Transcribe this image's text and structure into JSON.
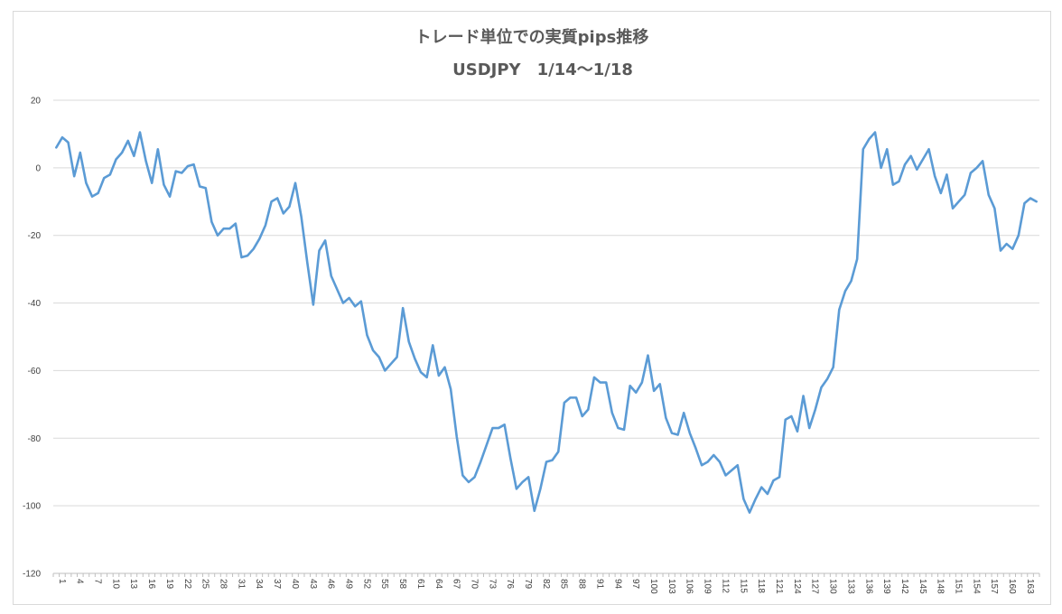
{
  "chart_data": {
    "type": "line",
    "title": "トレード単位での実質pips推移",
    "subtitle": "USDJPY　1/14～1/18",
    "xlabel": "",
    "ylabel": "",
    "ylim": [
      -120,
      20
    ],
    "y_ticks": [
      20,
      0,
      -20,
      -40,
      -60,
      -80,
      -100,
      -120
    ],
    "x_tick_labels": [
      "1",
      "4",
      "7",
      "10",
      "13",
      "16",
      "19",
      "22",
      "25",
      "28",
      "31",
      "34",
      "37",
      "40",
      "43",
      "46",
      "49",
      "52",
      "55",
      "58",
      "61",
      "64",
      "67",
      "70",
      "73",
      "76",
      "79",
      "82",
      "85",
      "88",
      "91",
      "94",
      "97",
      "100",
      "103",
      "106",
      "109",
      "112",
      "115",
      "118",
      "121",
      "124",
      "127",
      "130",
      "133",
      "136",
      "139",
      "142",
      "145",
      "148",
      "151",
      "154",
      "157",
      "160",
      "163"
    ],
    "x_tick_positions": [
      1,
      4,
      7,
      10,
      13,
      16,
      19,
      22,
      25,
      28,
      31,
      34,
      37,
      40,
      43,
      46,
      49,
      52,
      55,
      58,
      61,
      64,
      67,
      70,
      73,
      76,
      79,
      82,
      85,
      88,
      91,
      94,
      97,
      100,
      103,
      106,
      109,
      112,
      115,
      118,
      121,
      124,
      127,
      130,
      133,
      136,
      139,
      142,
      145,
      148,
      151,
      154,
      157,
      160,
      163
    ],
    "x_count": 165,
    "grid": "horizontal",
    "legend": "none",
    "series": [
      {
        "color": "#5b9bd5",
        "values": [
          6,
          9,
          7.5,
          -2.5,
          4.5,
          -4.5,
          -8.5,
          -7.5,
          -3,
          -2,
          2.5,
          4.5,
          8,
          3.5,
          10.5,
          2,
          -4.5,
          5.5,
          -5,
          -8.5,
          -1,
          -1.5,
          0.5,
          1,
          -5.5,
          -6,
          -16,
          -20,
          -18,
          -18,
          -16.5,
          -26.5,
          -26,
          -24,
          -21,
          -17,
          -10,
          -9,
          -13.5,
          -11.5,
          -4.5,
          -14.5,
          -28,
          -40.5,
          -24.5,
          -21.5,
          -32,
          -36,
          -40,
          -38.5,
          -41,
          -39.5,
          -49.5,
          -54,
          -56,
          -60,
          -58,
          -56,
          -41.5,
          -51.5,
          -56.5,
          -60.5,
          -62,
          -52.5,
          -61.5,
          -59,
          -65.5,
          -79.5,
          -91,
          -93,
          -91.5,
          -87,
          -82,
          -77,
          -77,
          -76,
          -86,
          -95,
          -93,
          -91.5,
          -101.5,
          -95,
          -87,
          -86.5,
          -84,
          -69.5,
          -68,
          -68,
          -73.5,
          -71.5,
          -62,
          -63.5,
          -63.5,
          -72.5,
          -77,
          -77.5,
          -64.5,
          -66.5,
          -63.5,
          -55.5,
          -66,
          -64,
          -74,
          -78.5,
          -79,
          -72.5,
          -78.5,
          -83,
          -88,
          -87,
          -85,
          -87,
          -91,
          -89.5,
          -88,
          -98,
          -102,
          -98,
          -94.5,
          -96.5,
          -92.5,
          -91.5,
          -74.5,
          -73.5,
          -78,
          -67.5,
          -77,
          -71.5,
          -65,
          -62.5,
          -59,
          -42,
          -36.5,
          -33.5,
          -27,
          5.5,
          8.5,
          10.5,
          0,
          5.5,
          -5,
          -4,
          1,
          3.5,
          -0.5,
          2.5,
          5.5,
          -2.5,
          -7.5,
          -2,
          -12,
          -10,
          -8,
          -1.5,
          0,
          2,
          -8,
          -12,
          -24.5,
          -22.5,
          -24,
          -20,
          -10.5,
          -9,
          -10
        ]
      }
    ]
  }
}
